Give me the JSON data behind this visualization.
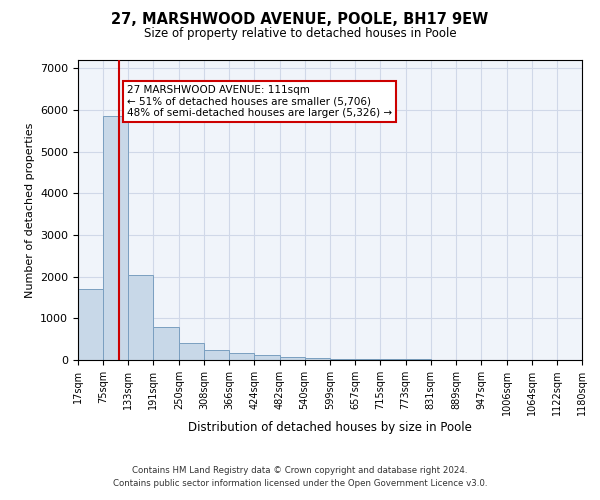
{
  "title1": "27, MARSHWOOD AVENUE, POOLE, BH17 9EW",
  "title2": "Size of property relative to detached houses in Poole",
  "xlabel": "Distribution of detached houses by size in Poole",
  "ylabel": "Number of detached properties",
  "annotation_line1": "27 MARSHWOOD AVENUE: 111sqm",
  "annotation_line2": "← 51% of detached houses are smaller (5,706)",
  "annotation_line3": "48% of semi-detached houses are larger (5,326) →",
  "property_size": 111,
  "bin_edges": [
    17,
    75,
    133,
    191,
    250,
    308,
    366,
    424,
    482,
    540,
    599,
    657,
    715,
    773,
    831,
    889,
    947,
    1006,
    1064,
    1122,
    1180
  ],
  "bar_heights": [
    1700,
    5850,
    2050,
    800,
    420,
    240,
    160,
    110,
    75,
    55,
    30,
    25,
    20,
    15,
    10,
    8,
    6,
    5,
    4,
    3
  ],
  "bar_color": "#c8d8e8",
  "bar_edge_color": "#7a9fc0",
  "vline_color": "#cc0000",
  "grid_color": "#d0d8e8",
  "background_color": "#f0f4fa",
  "annotation_box_color": "#ffffff",
  "annotation_box_edge": "#cc0000",
  "footer1": "Contains HM Land Registry data © Crown copyright and database right 2024.",
  "footer2": "Contains public sector information licensed under the Open Government Licence v3.0.",
  "ylim": [
    0,
    7200
  ],
  "yticks": [
    0,
    1000,
    2000,
    3000,
    4000,
    5000,
    6000,
    7000
  ]
}
